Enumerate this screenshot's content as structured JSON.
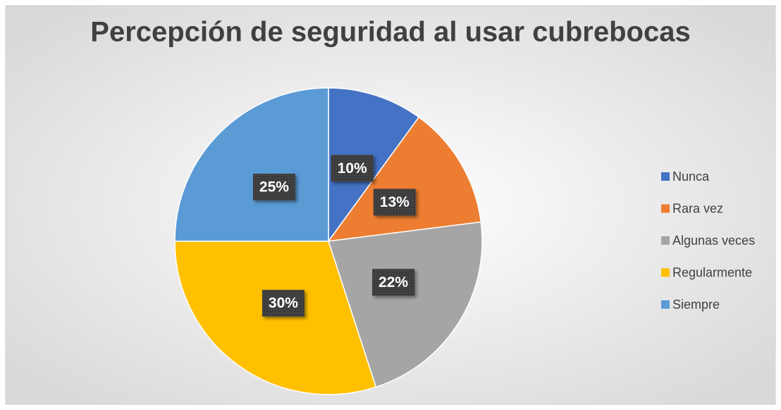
{
  "chart_data": {
    "type": "pie",
    "title": "Percepción de seguridad al usar cubrebocas",
    "categories": [
      "Nunca",
      "Rara vez",
      "Algunas veces",
      "Regularmente",
      "Siempre"
    ],
    "values": [
      10,
      13,
      22,
      30,
      25
    ],
    "value_labels": [
      "10%",
      "13%",
      "22%",
      "30%",
      "25%"
    ],
    "colors": [
      "#4472c4",
      "#ed7d31",
      "#a5a5a5",
      "#ffc000",
      "#5b9bd5"
    ],
    "legend": "right"
  }
}
